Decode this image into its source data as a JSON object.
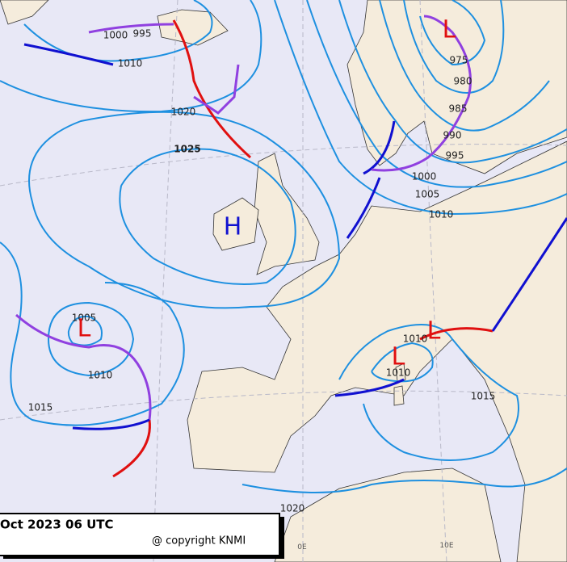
{
  "isobar_labels": [
    "1000",
    "995",
    "1010",
    "1020",
    "1025",
    "975",
    "980",
    "985",
    "990",
    "995",
    "1000",
    "1005",
    "1010",
    "1005",
    "1010",
    "1015",
    "1010",
    "1010",
    "1015",
    "1020"
  ],
  "pressure_centers": [
    "L",
    "H",
    "L",
    "L",
    "L"
  ],
  "meridian_labels": [
    "0E",
    "10E"
  ],
  "footer": {
    "valid_time": "Oct 2023 06 UTC",
    "copyright": "@ copyright KNMI"
  }
}
